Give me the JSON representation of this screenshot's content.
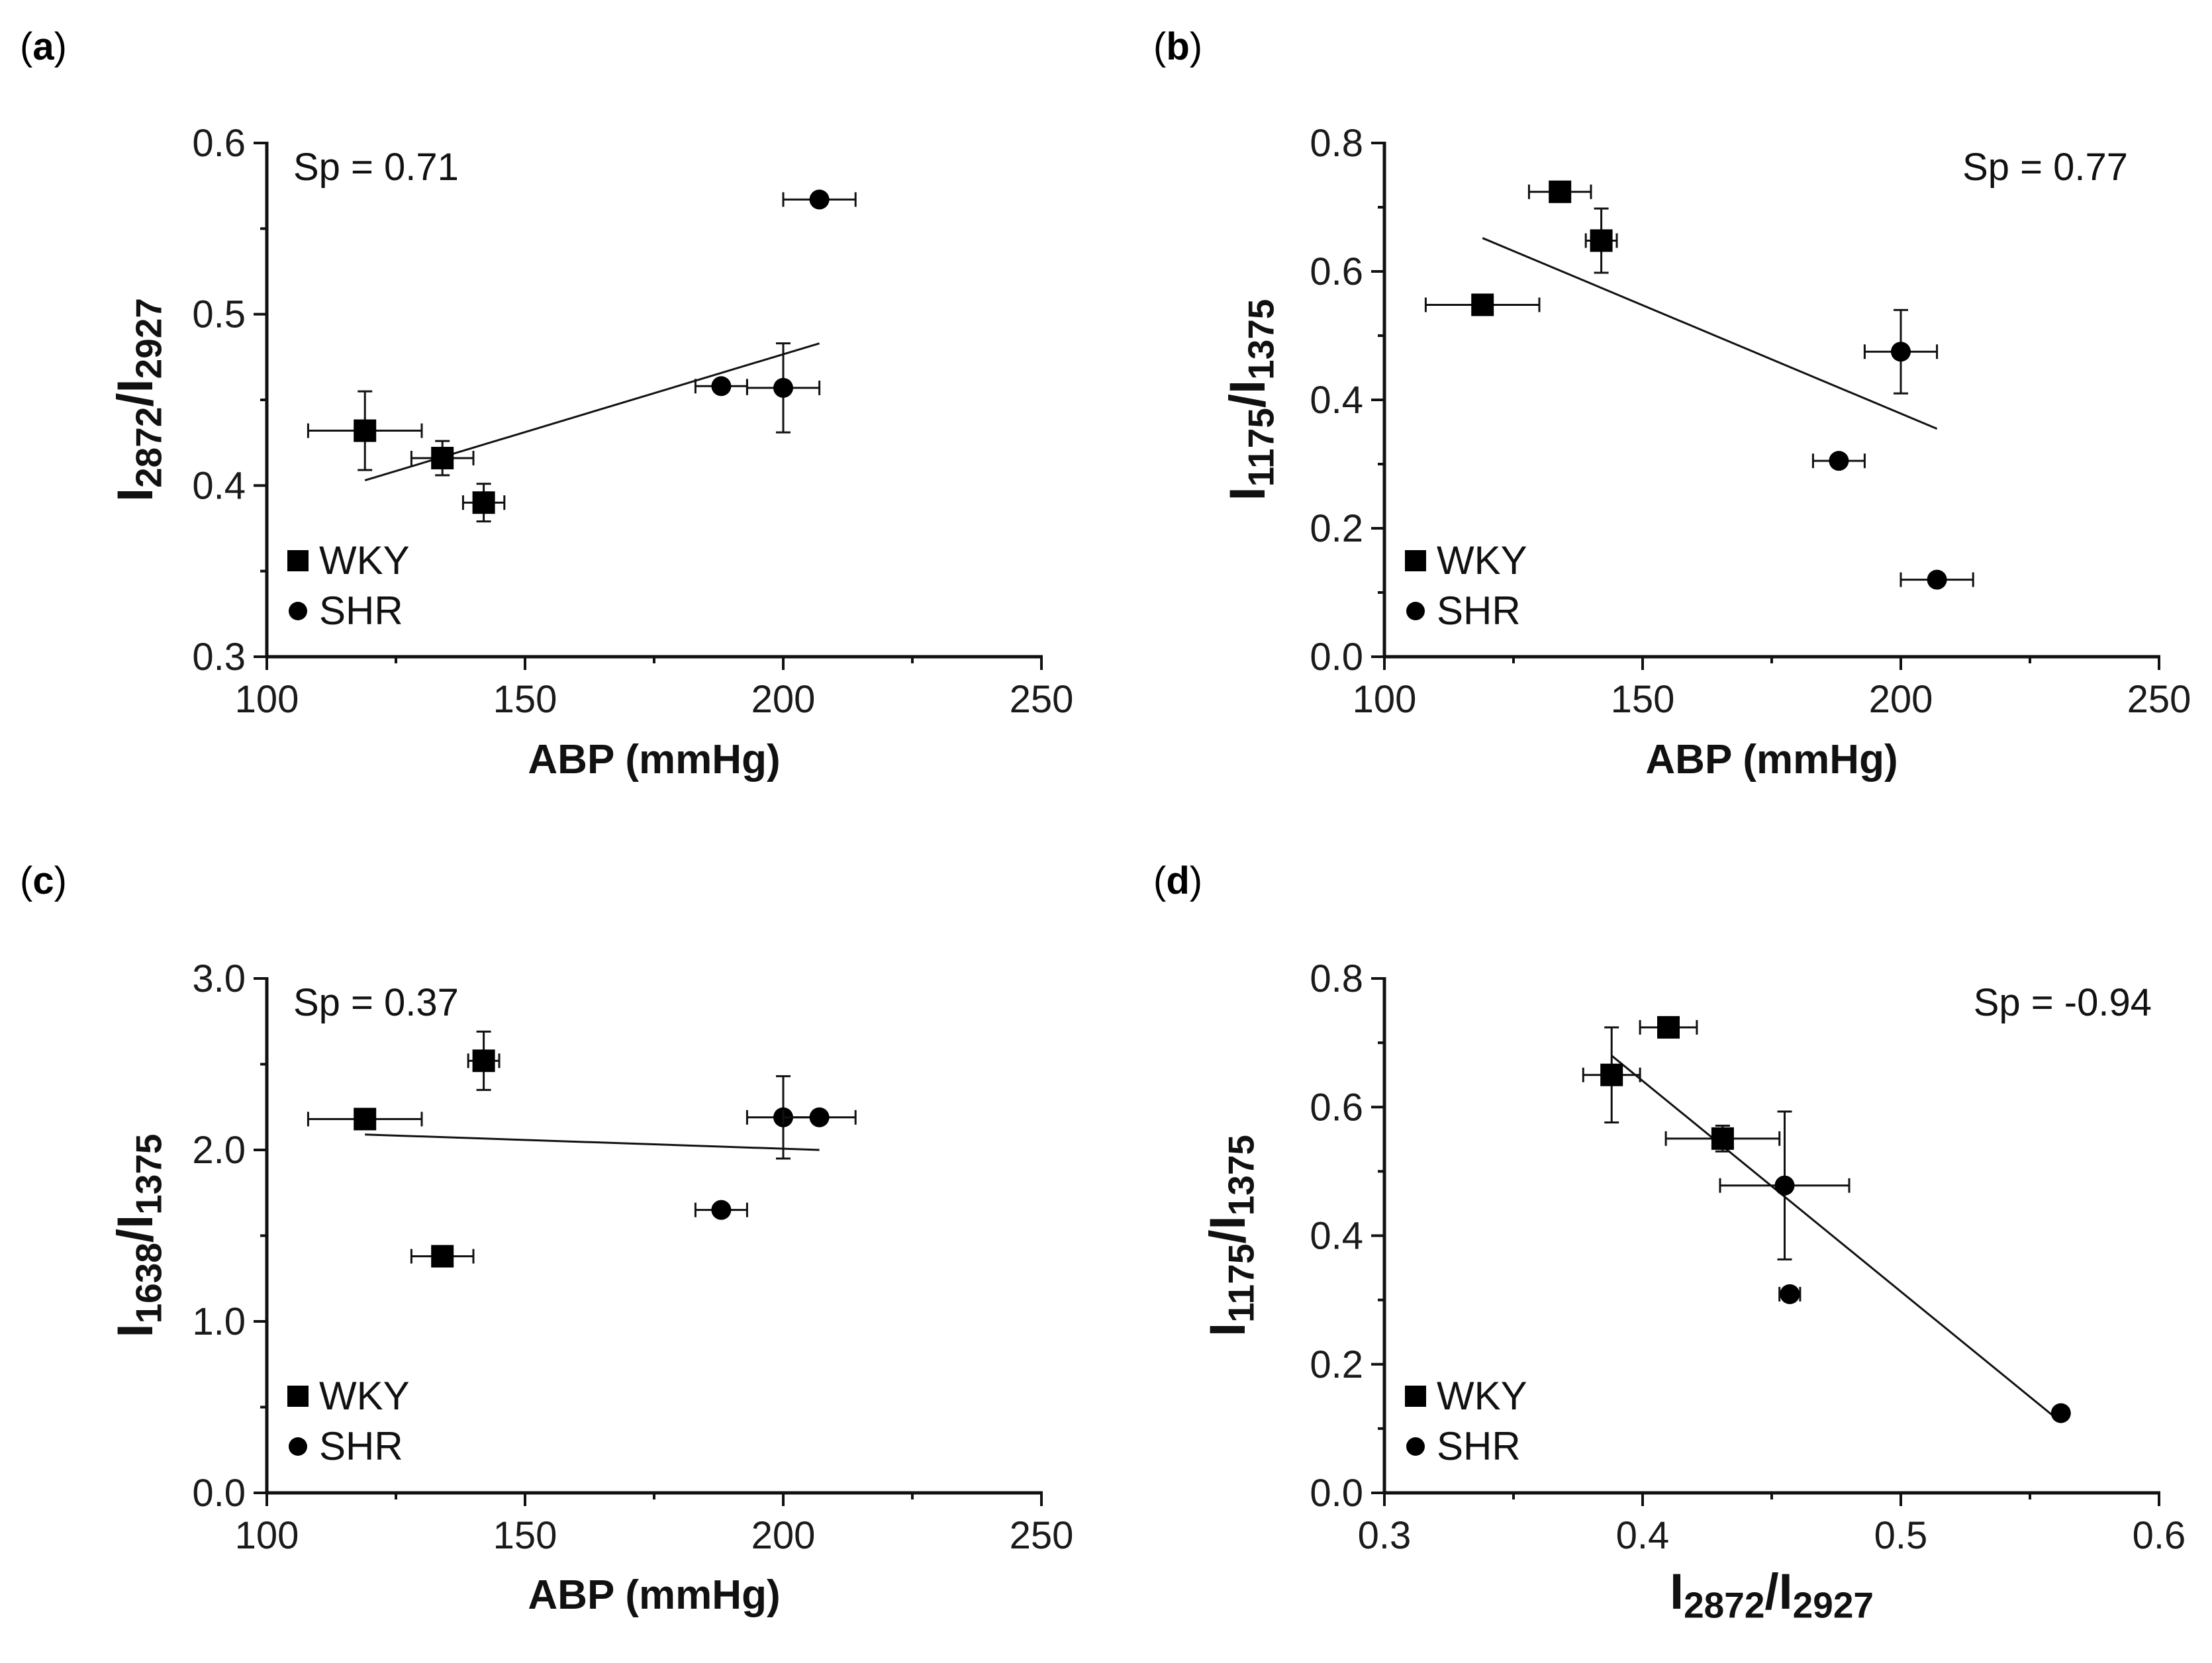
{
  "chart_data": [
    {
      "panel": "a",
      "type": "scatter",
      "xlabel": "ABP (mmHg)",
      "ylabel": {
        "base": "I",
        "sub1": "2872",
        "sep": "/I",
        "sub2": "2927"
      },
      "xlim": [
        100,
        250
      ],
      "ylim": [
        0.3,
        0.6
      ],
      "xticks": [
        "100",
        "150",
        "200",
        "250"
      ],
      "yticks": [
        "0.3",
        "0.4",
        "0.5",
        "0.6"
      ],
      "annotation": "Sp = 0.71",
      "fit": {
        "x1": 119,
        "y1": 0.403,
        "x2": 207,
        "y2": 0.483
      },
      "series": [
        {
          "name": "WKY",
          "marker": "square",
          "points": [
            {
              "x": 119,
              "y": 0.432,
              "xerr": 11,
              "yerr": 0.023
            },
            {
              "x": 134,
              "y": 0.416,
              "xerr": 6,
              "yerr": 0.01
            },
            {
              "x": 142,
              "y": 0.39,
              "xerr": 4,
              "yerr": 0.011
            }
          ]
        },
        {
          "name": "SHR",
          "marker": "circle",
          "points": [
            {
              "x": 188,
              "y": 0.458,
              "xerr": 5,
              "yerr": 0
            },
            {
              "x": 200,
              "y": 0.457,
              "xerr": 7,
              "yerr": 0.026
            },
            {
              "x": 207,
              "y": 0.567,
              "xerr": 7,
              "yerr": 0
            }
          ]
        }
      ]
    },
    {
      "panel": "b",
      "type": "scatter",
      "xlabel": "ABP (mmHg)",
      "ylabel": {
        "base": "I",
        "sub1": "1175",
        "sep": "/I",
        "sub2": "1375"
      },
      "xlim": [
        100,
        250
      ],
      "ylim": [
        0.0,
        0.8
      ],
      "xticks": [
        "100",
        "150",
        "200",
        "250"
      ],
      "yticks": [
        "0.0",
        "0.2",
        "0.4",
        "0.6",
        "0.8"
      ],
      "annotation": "Sp = 0.77",
      "fit": {
        "x1": 119,
        "y1": 0.652,
        "x2": 207,
        "y2": 0.355
      },
      "series": [
        {
          "name": "WKY",
          "marker": "square",
          "points": [
            {
              "x": 134,
              "y": 0.724,
              "xerr": 6,
              "yerr": 0
            },
            {
              "x": 142,
              "y": 0.648,
              "xerr": 3,
              "yerr": 0.05
            },
            {
              "x": 119,
              "y": 0.548,
              "xerr": 11,
              "yerr": 0
            }
          ]
        },
        {
          "name": "SHR",
          "marker": "circle",
          "points": [
            {
              "x": 200,
              "y": 0.475,
              "xerr": 7,
              "yerr": 0.065
            },
            {
              "x": 188,
              "y": 0.305,
              "xerr": 5,
              "yerr": 0
            },
            {
              "x": 207,
              "y": 0.12,
              "xerr": 7,
              "yerr": 0
            }
          ]
        }
      ]
    },
    {
      "panel": "c",
      "type": "scatter",
      "xlabel": "ABP (mmHg)",
      "ylabel": {
        "base": "I",
        "sub1": "1638",
        "sep": "/I",
        "sub2": "1375"
      },
      "xlim": [
        100,
        250
      ],
      "ylim": [
        0.0,
        3.0
      ],
      "xticks": [
        "100",
        "150",
        "200",
        "250"
      ],
      "yticks": [
        "0.0",
        "1.0",
        "2.0",
        "3.0"
      ],
      "annotation": "Sp = 0.37",
      "fit": {
        "x1": 119,
        "y1": 2.09,
        "x2": 207,
        "y2": 2.0
      },
      "series": [
        {
          "name": "WKY",
          "marker": "square",
          "points": [
            {
              "x": 119,
              "y": 2.18,
              "xerr": 11,
              "yerr": 0
            },
            {
              "x": 142,
              "y": 2.52,
              "xerr": 3,
              "yerr": 0.17
            },
            {
              "x": 134,
              "y": 1.38,
              "xerr": 6,
              "yerr": 0
            }
          ]
        },
        {
          "name": "SHR",
          "marker": "circle",
          "points": [
            {
              "x": 200,
              "y": 2.19,
              "xerr": 7,
              "yerr": 0.24
            },
            {
              "x": 207,
              "y": 2.19,
              "xerr": 7,
              "yerr": 0
            },
            {
              "x": 188,
              "y": 1.65,
              "xerr": 5,
              "yerr": 0
            }
          ]
        }
      ]
    },
    {
      "panel": "d",
      "type": "scatter",
      "xlabel": {
        "base": "I",
        "sub1": "2872",
        "sep": "/I",
        "sub2": "2927"
      },
      "ylabel": {
        "base": "I",
        "sub1": "1175",
        "sep": "/I",
        "sub2": "1375"
      },
      "xlim": [
        0.3,
        0.6
      ],
      "ylim": [
        0.0,
        0.8
      ],
      "xticks": [
        "0.3",
        "0.4",
        "0.5",
        "0.6"
      ],
      "yticks": [
        "0.0",
        "0.2",
        "0.4",
        "0.6",
        "0.8"
      ],
      "annotation": "Sp = -0.94",
      "fit": {
        "x1": 0.388,
        "y1": 0.68,
        "x2": 0.562,
        "y2": 0.11
      },
      "series": [
        {
          "name": "WKY",
          "marker": "square",
          "points": [
            {
              "x": 0.41,
              "y": 0.724,
              "xerr": 0.011,
              "yerr": 0
            },
            {
              "x": 0.388,
              "y": 0.65,
              "xerr": 0.011,
              "yerr": 0.074
            },
            {
              "x": 0.431,
              "y": 0.551,
              "xerr": 0.022,
              "yerr": 0.02
            }
          ]
        },
        {
          "name": "SHR",
          "marker": "circle",
          "points": [
            {
              "x": 0.455,
              "y": 0.478,
              "xerr": 0.025,
              "yerr": 0.115
            },
            {
              "x": 0.457,
              "y": 0.309,
              "xerr": 0.004,
              "yerr": 0
            },
            {
              "x": 0.562,
              "y": 0.124,
              "xerr": 0,
              "yerr": 0
            }
          ]
        }
      ]
    }
  ]
}
